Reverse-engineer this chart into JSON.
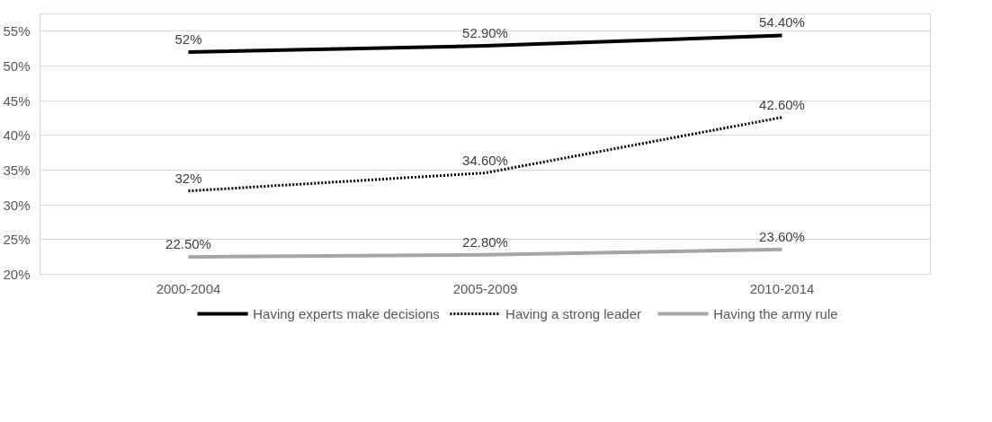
{
  "chart_data": {
    "type": "line",
    "categories": [
      "2000-2004",
      "2005-2009",
      "2010-2014"
    ],
    "series": [
      {
        "name": "Having experts make decisions",
        "color": "#000000",
        "line_style": "solid",
        "values": [
          52,
          52.9,
          54.4
        ],
        "value_labels": [
          "52%",
          "52.90%",
          "54.40%"
        ]
      },
      {
        "name": "Having a strong leader",
        "color": "#000000",
        "line_style": "dotted",
        "values": [
          32,
          34.6,
          42.6
        ],
        "value_labels": [
          "32%",
          "34.60%",
          "42.60%"
        ]
      },
      {
        "name": "Having the army rule",
        "color": "#a5a5a5",
        "line_style": "solid",
        "values": [
          22.5,
          22.8,
          23.6
        ],
        "value_labels": [
          "22.50%",
          "22.80%",
          "23.60%"
        ]
      }
    ],
    "ylim": [
      20,
      57.5
    ],
    "yticks": [
      {
        "value": 20,
        "label": "20%"
      },
      {
        "value": 25,
        "label": "25%"
      },
      {
        "value": 30,
        "label": "30%"
      },
      {
        "value": 35,
        "label": "35%"
      },
      {
        "value": 40,
        "label": "40%"
      },
      {
        "value": 45,
        "label": "45%"
      },
      {
        "value": 50,
        "label": "50%"
      },
      {
        "value": 55,
        "label": "55%"
      }
    ],
    "grid": "y",
    "legend": "bottom",
    "marker": "none"
  }
}
